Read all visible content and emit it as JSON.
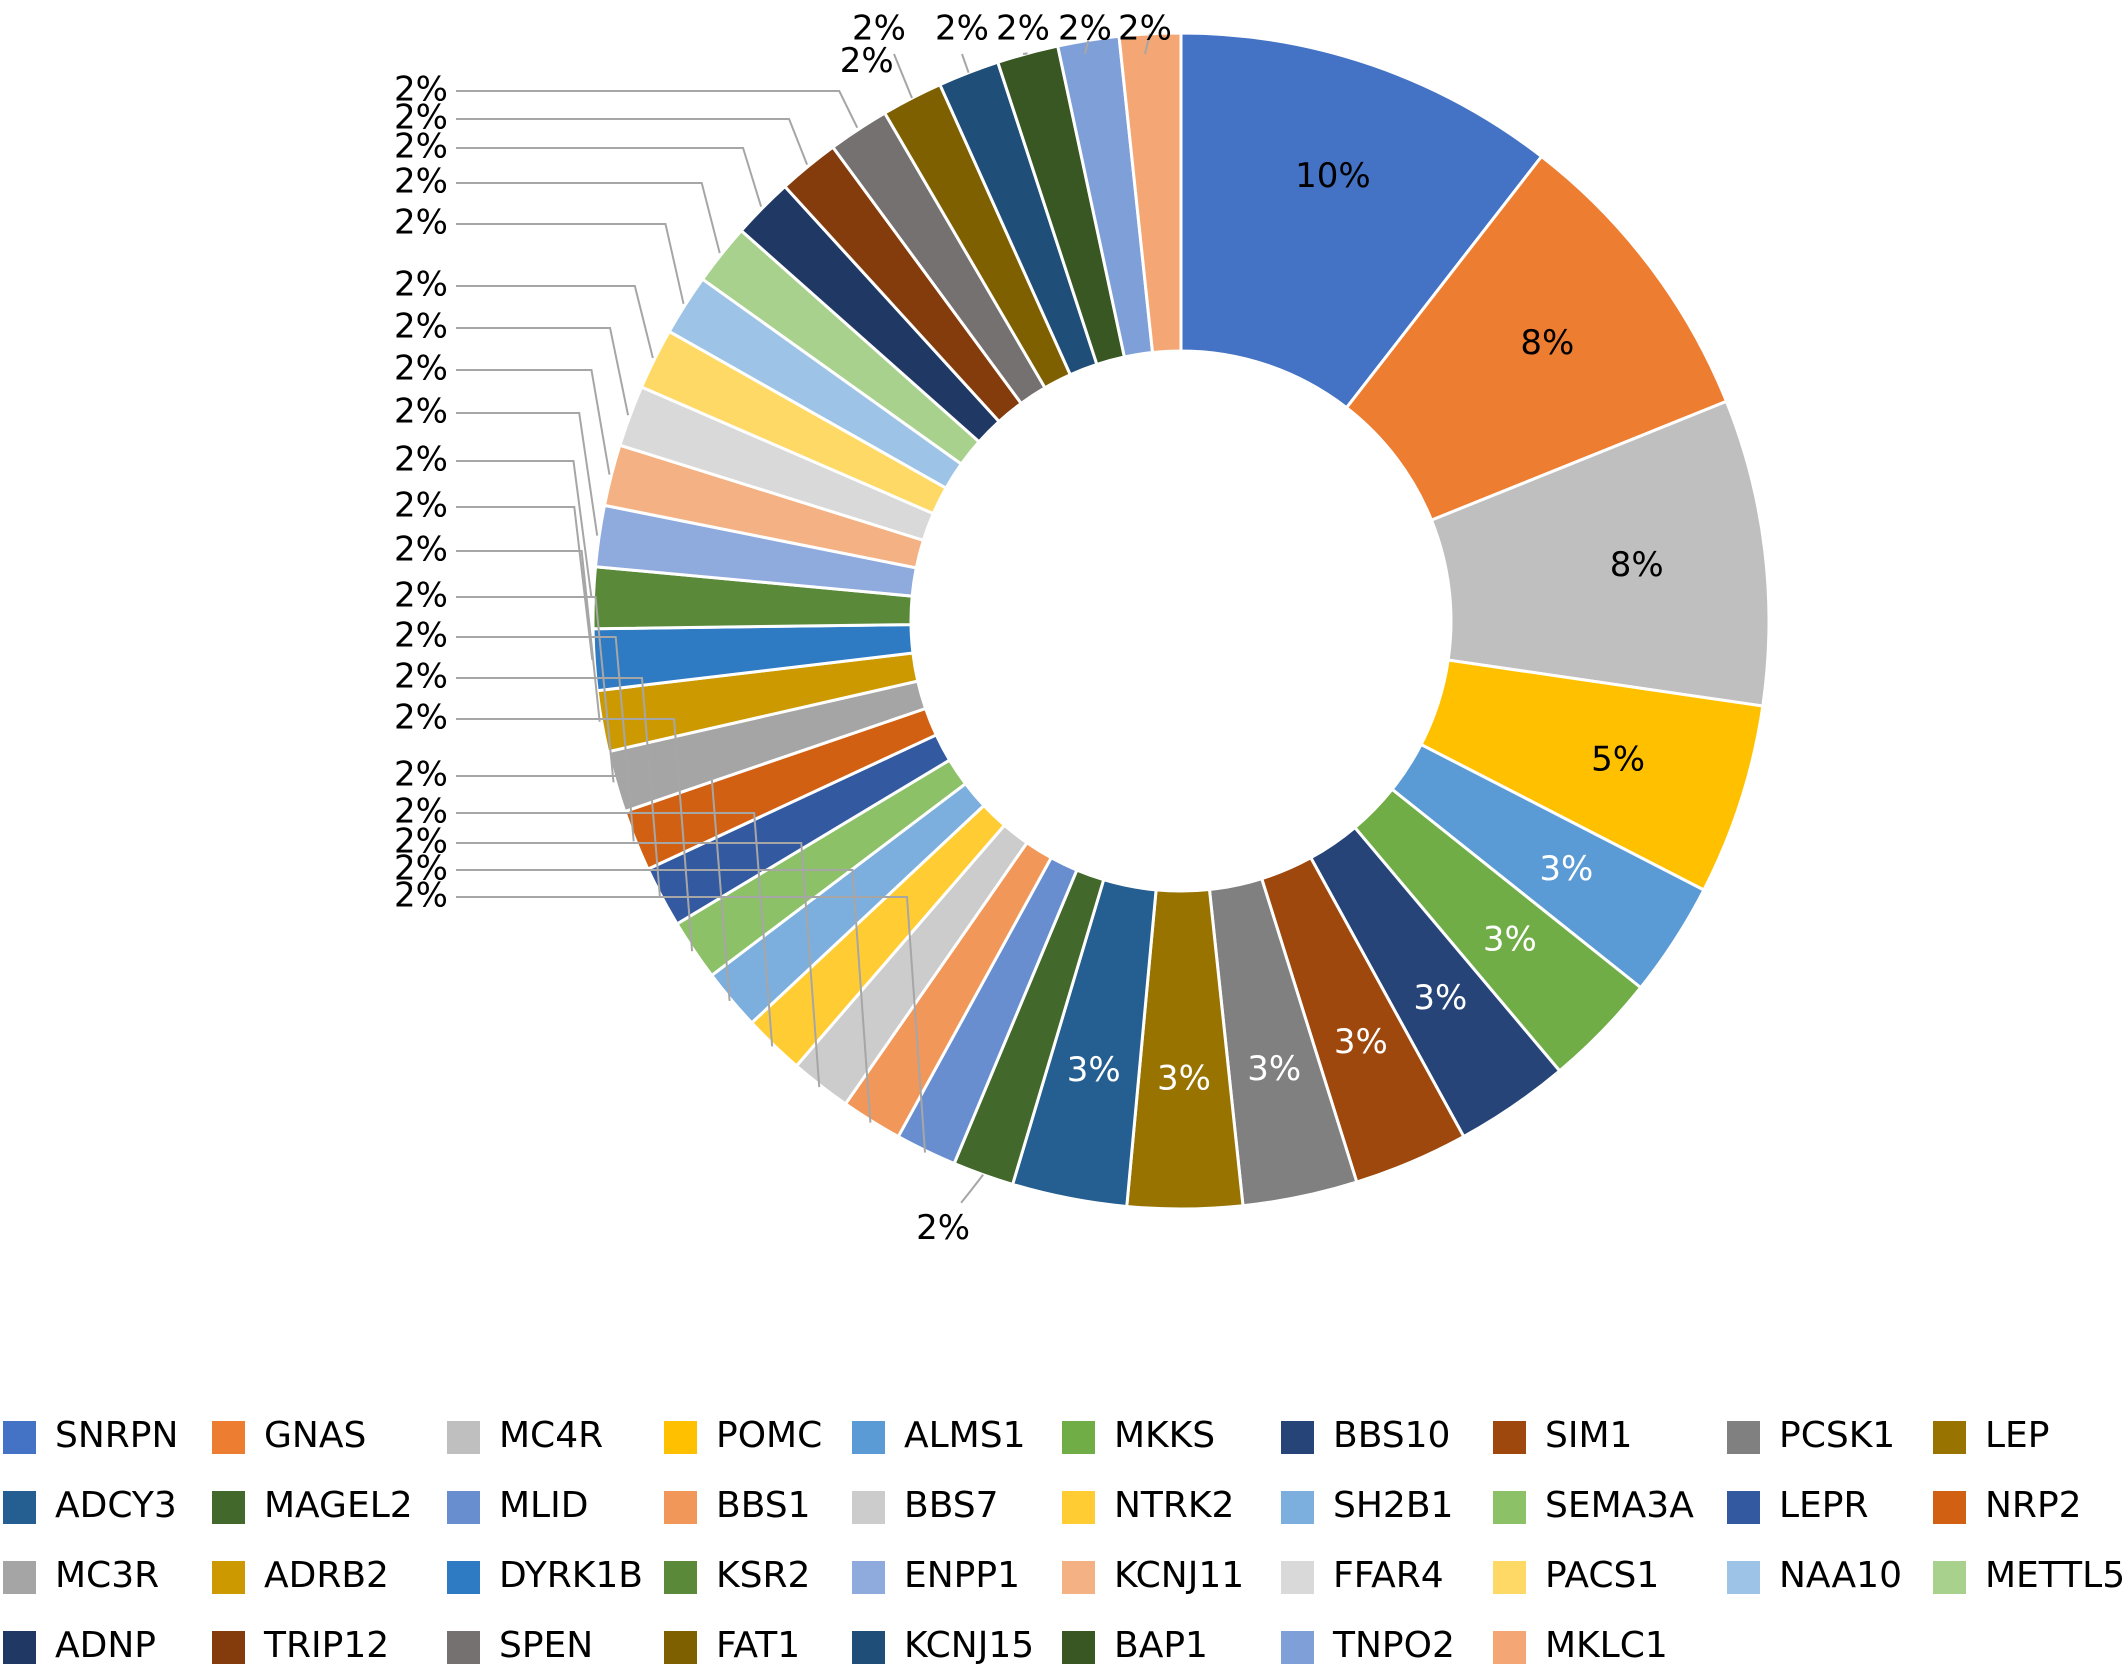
{
  "chart_data": {
    "type": "doughnut",
    "title": "",
    "legend_position": "bottom",
    "series": [
      {
        "name": "SNRPN",
        "value": 10,
        "label": "10%",
        "color": "#4472C4",
        "label_color": "#000000"
      },
      {
        "name": "GNAS",
        "value": 8,
        "label": "8%",
        "color": "#ED7D31",
        "label_color": "#000000"
      },
      {
        "name": "MC4R",
        "value": 8,
        "label": "8%",
        "color": "#BFBFBF",
        "label_color": "#000000"
      },
      {
        "name": "POMC",
        "value": 5,
        "label": "5%",
        "color": "#FFC000",
        "label_color": "#000000"
      },
      {
        "name": "ALMS1",
        "value": 3,
        "label": "3%",
        "color": "#5B9BD5",
        "label_color": "#FFFFFF"
      },
      {
        "name": "MKKS",
        "value": 3,
        "label": "3%",
        "color": "#70AD47",
        "label_color": "#FFFFFF"
      },
      {
        "name": "BBS10",
        "value": 3,
        "label": "3%",
        "color": "#264478",
        "label_color": "#FFFFFF"
      },
      {
        "name": "SIM1",
        "value": 3,
        "label": "3%",
        "color": "#9E480E",
        "label_color": "#FFFFFF"
      },
      {
        "name": "PCSK1",
        "value": 3,
        "label": "3%",
        "color": "#808080",
        "label_color": "#FFFFFF"
      },
      {
        "name": "LEP",
        "value": 3,
        "label": "3%",
        "color": "#997300",
        "label_color": "#FFFFFF"
      },
      {
        "name": "ADCY3",
        "value": 3,
        "label": "3%",
        "color": "#255E91",
        "label_color": "#FFFFFF"
      },
      {
        "name": "MAGEL2",
        "value": 1.6,
        "label": "2%",
        "color": "#43682B",
        "label_color": "#000000"
      },
      {
        "name": "MLID",
        "value": 1.6,
        "label": "2%",
        "color": "#698ED0",
        "label_color": "#000000"
      },
      {
        "name": "BBS1",
        "value": 1.6,
        "label": "2%",
        "color": "#F1975A",
        "label_color": "#000000"
      },
      {
        "name": "BBS7",
        "value": 1.6,
        "label": "2%",
        "color": "#CCCCCC",
        "label_color": "#000000"
      },
      {
        "name": "NTRK2",
        "value": 1.6,
        "label": "2%",
        "color": "#FFCD33",
        "label_color": "#000000"
      },
      {
        "name": "SH2B1",
        "value": 1.6,
        "label": "2%",
        "color": "#7CAFDD",
        "label_color": "#000000"
      },
      {
        "name": "SEMA3A",
        "value": 1.6,
        "label": "2%",
        "color": "#8CC168",
        "label_color": "#000000"
      },
      {
        "name": "LEPR",
        "value": 1.6,
        "label": "2%",
        "color": "#335AA1",
        "label_color": "#000000"
      },
      {
        "name": "NRP2",
        "value": 1.6,
        "label": "2%",
        "color": "#D26012",
        "label_color": "#000000"
      },
      {
        "name": "MC3R",
        "value": 1.6,
        "label": "2%",
        "color": "#A5A5A5",
        "label_color": "#000000"
      },
      {
        "name": "ADRB2",
        "value": 1.6,
        "label": "2%",
        "color": "#CC9A00",
        "label_color": "#000000"
      },
      {
        "name": "DYRK1B",
        "value": 1.6,
        "label": "2%",
        "color": "#2E7BC4",
        "label_color": "#000000"
      },
      {
        "name": "KSR2",
        "value": 1.6,
        "label": "2%",
        "color": "#5A8A39",
        "label_color": "#000000"
      },
      {
        "name": "ENPP1",
        "value": 1.6,
        "label": "2%",
        "color": "#8FAADC",
        "label_color": "#000000"
      },
      {
        "name": "KCNJ11",
        "value": 1.6,
        "label": "2%",
        "color": "#F4B183",
        "label_color": "#000000"
      },
      {
        "name": "FFAR4",
        "value": 1.6,
        "label": "2%",
        "color": "#D9D9D9",
        "label_color": "#000000"
      },
      {
        "name": "PACS1",
        "value": 1.6,
        "label": "2%",
        "color": "#FFD966",
        "label_color": "#000000"
      },
      {
        "name": "NAA10",
        "value": 1.6,
        "label": "2%",
        "color": "#9DC3E6",
        "label_color": "#000000"
      },
      {
        "name": "METTL5",
        "value": 1.6,
        "label": "2%",
        "color": "#A9D18E",
        "label_color": "#000000"
      },
      {
        "name": "ADNP",
        "value": 1.6,
        "label": "2%",
        "color": "#203864",
        "label_color": "#000000"
      },
      {
        "name": "TRIP12",
        "value": 1.6,
        "label": "2%",
        "color": "#843C0C",
        "label_color": "#000000"
      },
      {
        "name": "SPEN",
        "value": 1.6,
        "label": "2%",
        "color": "#767171",
        "label_color": "#000000"
      },
      {
        "name": "FAT1",
        "value": 1.6,
        "label": "2%",
        "color": "#7F6000",
        "label_color": "#000000"
      },
      {
        "name": "KCNJ15",
        "value": 1.6,
        "label": "2%",
        "color": "#1F4E79",
        "label_color": "#000000"
      },
      {
        "name": "BAP1",
        "value": 1.6,
        "label": "2%",
        "color": "#385723",
        "label_color": "#000000"
      },
      {
        "name": "TNPO2",
        "value": 1.6,
        "label": "2%",
        "color": "#7F9FD8",
        "label_color": "#000000"
      },
      {
        "name": "MKLC1",
        "value": 1.6,
        "label": "2%",
        "color": "#F4A775",
        "label_color": "#000000"
      }
    ]
  }
}
